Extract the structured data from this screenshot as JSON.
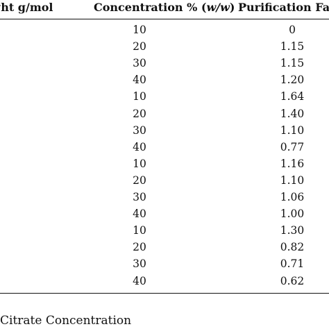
{
  "table": {
    "headers": {
      "molecular_weight": "ght g/mol",
      "concentration_prefix": "Concentration % (",
      "concentration_unit": "w/w",
      "concentration_suffix": ")",
      "purification_factor": "Purification Fac"
    },
    "rows": [
      {
        "concentration": "10",
        "purification_factor": "0"
      },
      {
        "concentration": "20",
        "purification_factor": "1.15"
      },
      {
        "concentration": "30",
        "purification_factor": "1.15"
      },
      {
        "concentration": "40",
        "purification_factor": "1.20"
      },
      {
        "concentration": "10",
        "purification_factor": "1.64"
      },
      {
        "concentration": "20",
        "purification_factor": "1.40"
      },
      {
        "concentration": "30",
        "purification_factor": "1.10"
      },
      {
        "concentration": "40",
        "purification_factor": "0.77"
      },
      {
        "concentration": "10",
        "purification_factor": "1.16"
      },
      {
        "concentration": "20",
        "purification_factor": "1.10"
      },
      {
        "concentration": "30",
        "purification_factor": "1.06"
      },
      {
        "concentration": "40",
        "purification_factor": "1.00"
      },
      {
        "concentration": "10",
        "purification_factor": "1.30"
      },
      {
        "concentration": "20",
        "purification_factor": "0.82"
      },
      {
        "concentration": "30",
        "purification_factor": "0.71"
      },
      {
        "concentration": "40",
        "purification_factor": "0.62"
      }
    ]
  },
  "caption": "Citrate Concentration"
}
